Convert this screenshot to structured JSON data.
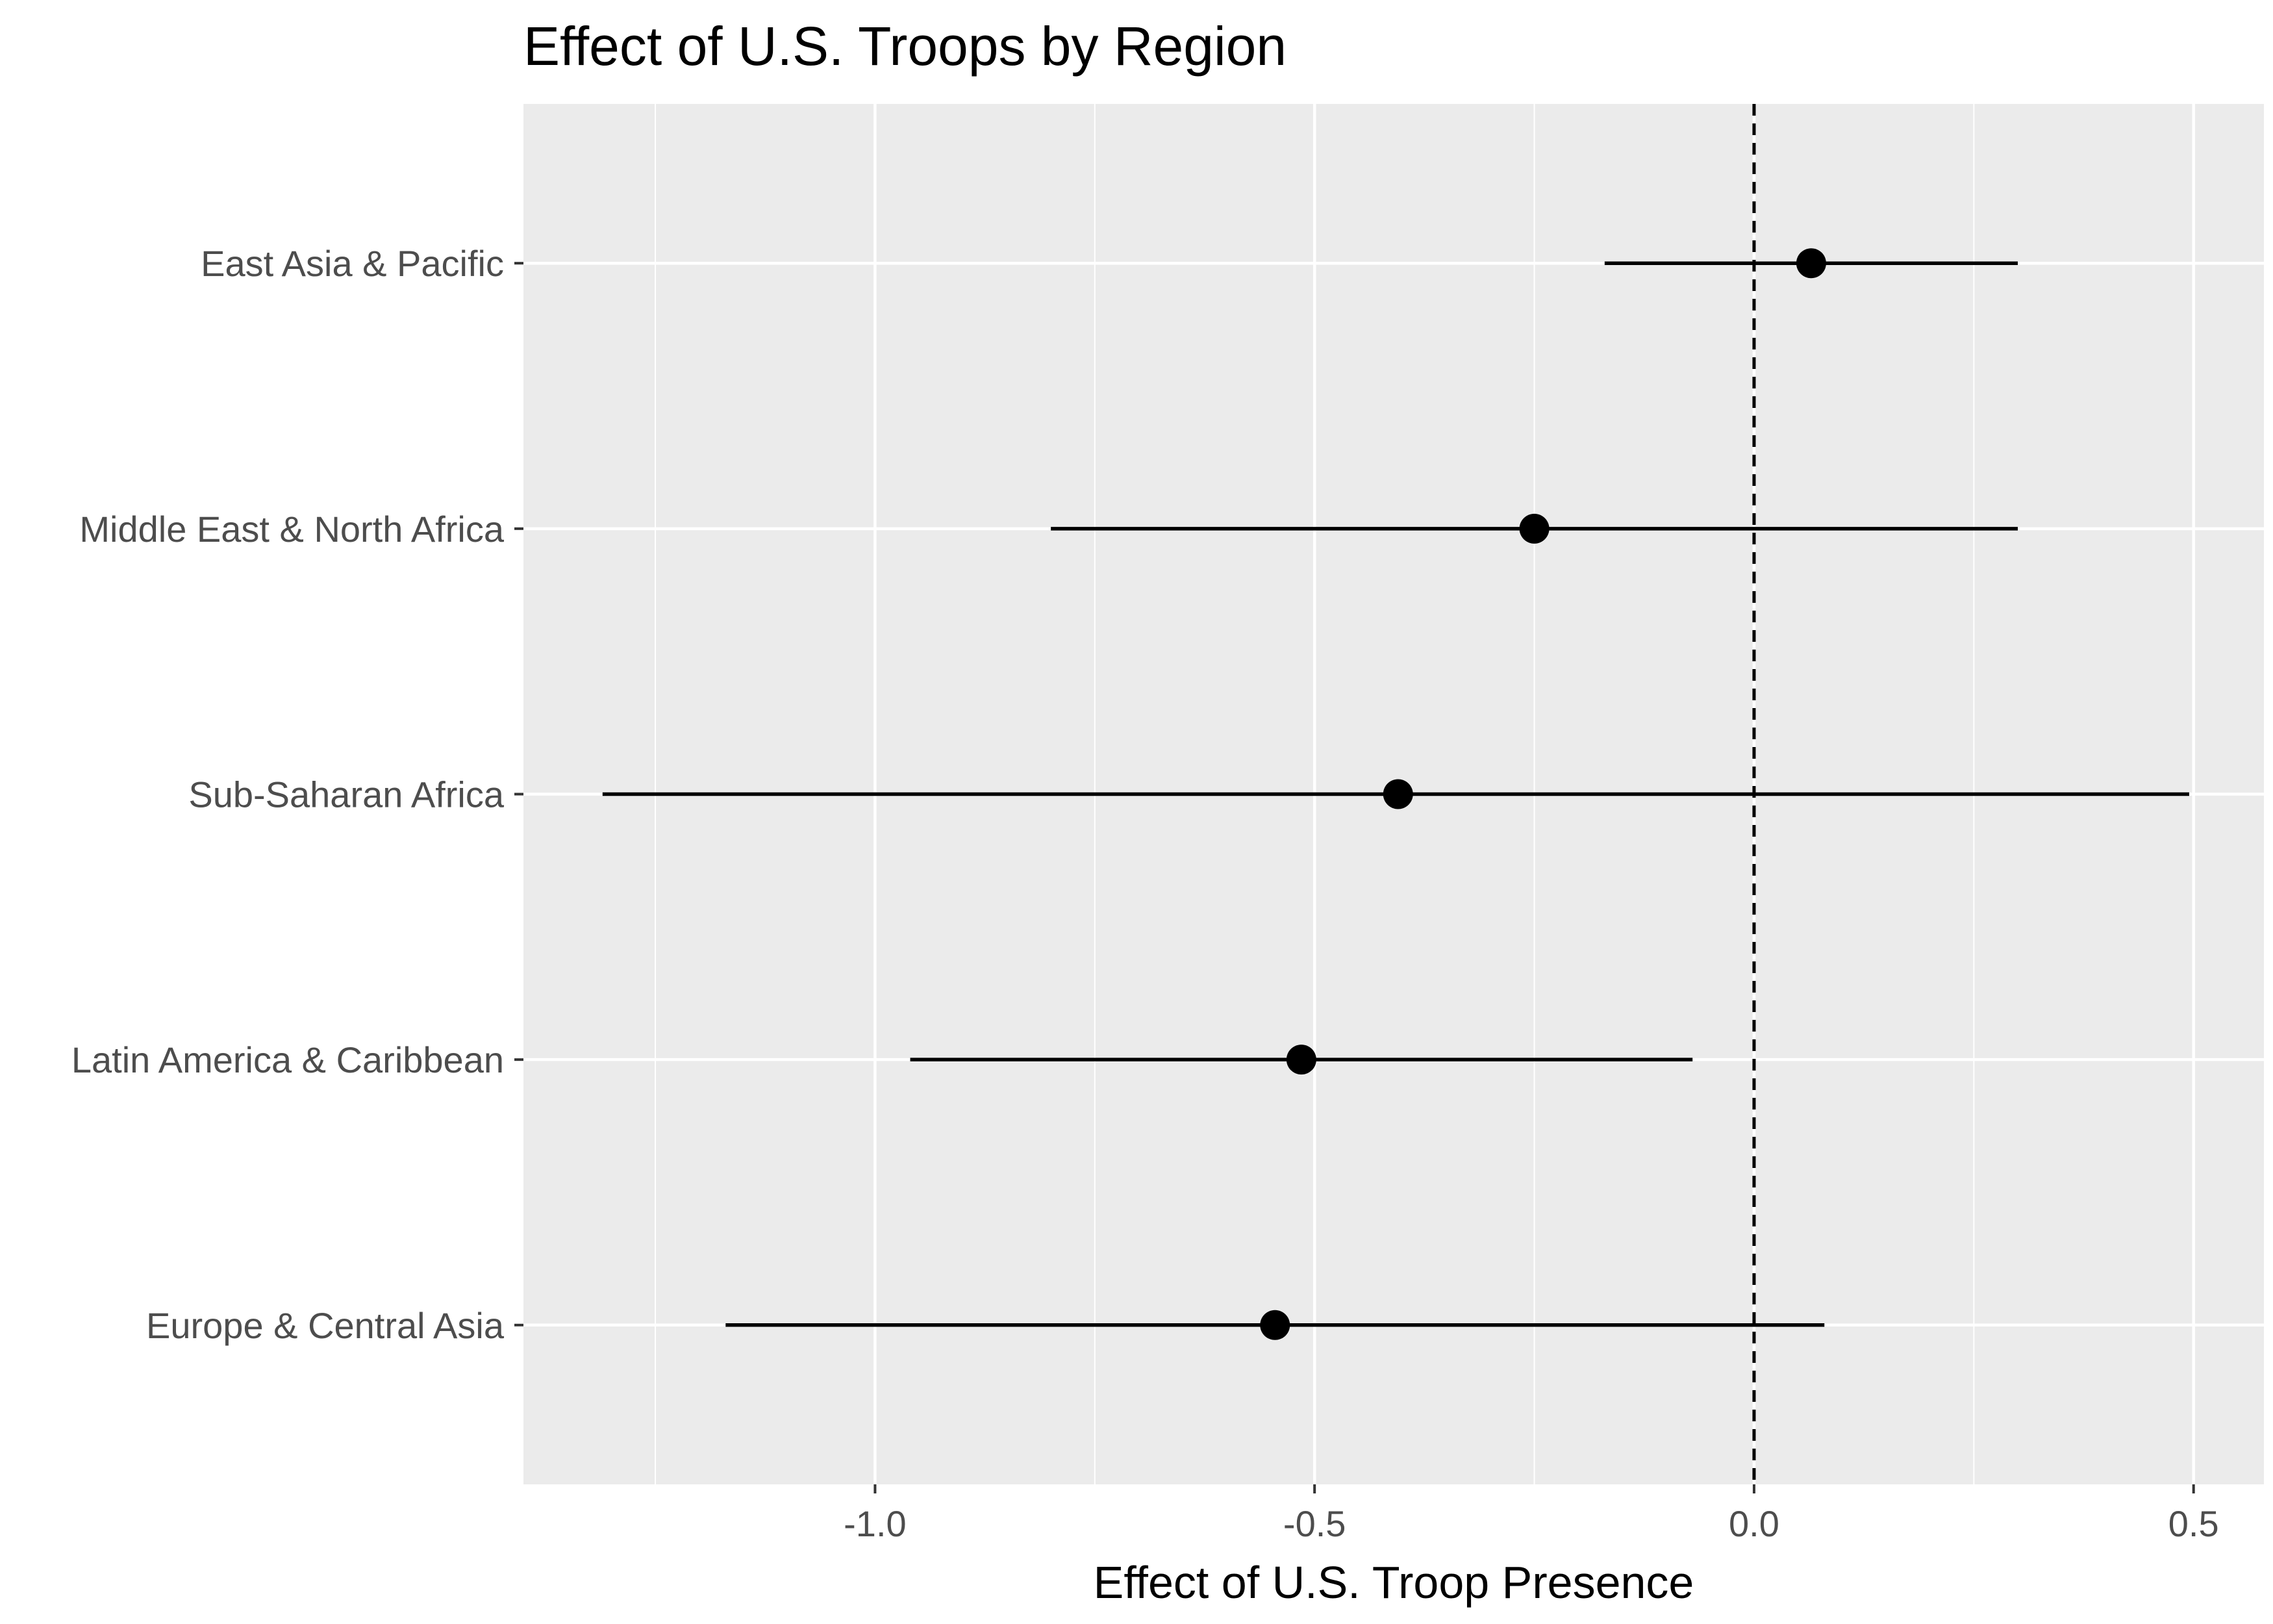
{
  "chart_data": {
    "type": "scatter",
    "subtype": "coefficient plot with confidence intervals",
    "title": "Effect of U.S. Troops by Region",
    "xlabel": "Effect of U.S. Troop Presence",
    "ylabel": "",
    "xlim": [
      -1.4,
      0.58
    ],
    "xticks": [
      -1.0,
      -0.5,
      0.0,
      0.5
    ],
    "xtick_labels": [
      "-1.0",
      "-0.5",
      "0.0",
      "0.5"
    ],
    "reference_line": {
      "x": 0.0,
      "style": "dashed"
    },
    "grid": true,
    "legend": "none",
    "colors": {
      "panel": "#EBEBEB",
      "grid": "#FFFFFF",
      "point": "#000000"
    },
    "categories": [
      "East Asia & Pacific",
      "Middle East & North Africa",
      "Sub-Saharan Africa",
      "Latin America & Caribbean",
      "Europe & Central Asia"
    ],
    "estimates": [
      0.065,
      -0.25,
      -0.405,
      -0.515,
      -0.545
    ],
    "lower": [
      -0.17,
      -0.8,
      -1.31,
      -0.96,
      -1.17
    ],
    "upper": [
      0.3,
      0.3,
      0.495,
      -0.07,
      0.08
    ]
  }
}
